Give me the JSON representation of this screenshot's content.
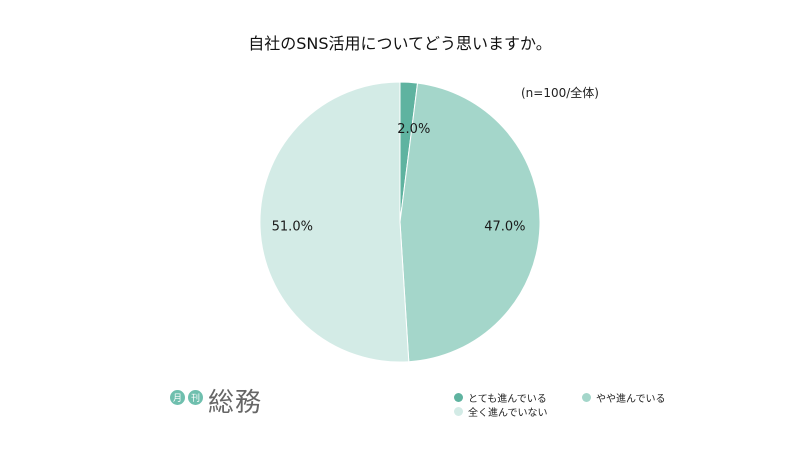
{
  "colors": {
    "slice_1": "#5fb3a0",
    "slice_2": "#a4d6ca",
    "slice_3": "#d3ebe6",
    "slice_edge": "#ffffff",
    "logo_badge": "#6fbfae"
  },
  "chart_data": {
    "type": "pie",
    "title": "自社のSNS活用についてどう思いますか。",
    "subtitle": "(n=100/全体)",
    "categories": [
      "とても進んでいる",
      "やや進んでいる",
      "全く進んでいない"
    ],
    "values": [
      2.0,
      47.0,
      51.0
    ],
    "value_labels": [
      "2.0%",
      "47.0%",
      "51.0%"
    ],
    "start": "12 o'clock",
    "direction": "clockwise",
    "legend_position": "bottom-right"
  },
  "logo": {
    "badge_1": "月",
    "badge_2": "刊",
    "name": "総務"
  }
}
